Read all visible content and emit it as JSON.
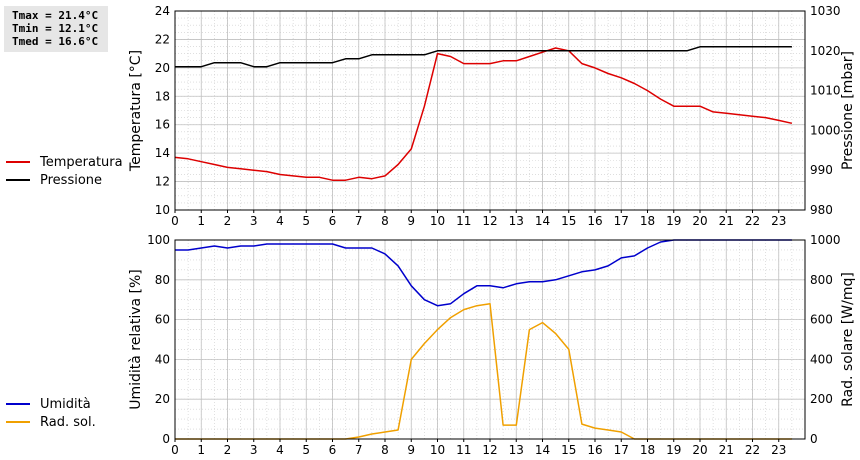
{
  "stats": {
    "tmax": "Tmax = 21.4°C",
    "tmin": "Tmin = 12.1°C",
    "tmed": "Tmed = 16.6°C"
  },
  "chart_data": [
    {
      "type": "line",
      "grid": true,
      "title": "",
      "xlabel": "",
      "x_ticks": [
        0,
        1,
        2,
        3,
        4,
        5,
        6,
        7,
        8,
        9,
        10,
        11,
        12,
        13,
        14,
        15,
        16,
        17,
        18,
        19,
        20,
        21,
        22,
        23
      ],
      "xlim": [
        0,
        24
      ],
      "ylabel": "Temperatura [°C]",
      "ylim": [
        10,
        24
      ],
      "y_ticks": [
        10,
        12,
        14,
        16,
        18,
        20,
        22,
        24
      ],
      "y2label": "Pressione [mbar]",
      "y2lim": [
        980,
        1030
      ],
      "y2_ticks": [
        980,
        990,
        1000,
        1010,
        1020,
        1030
      ],
      "legend": [
        {
          "name": "Temperatura",
          "color": "#dd0000"
        },
        {
          "name": "Pressione",
          "color": "#000000"
        }
      ],
      "series": [
        {
          "name": "Temperatura",
          "axis": "left",
          "color": "#dd0000",
          "x": [
            0,
            0.5,
            1,
            1.5,
            2,
            2.5,
            3,
            3.5,
            4,
            4.5,
            5,
            5.5,
            6,
            6.5,
            7,
            7.5,
            8,
            8.5,
            9,
            9.5,
            10,
            10.5,
            11,
            11.5,
            12,
            12.5,
            13,
            13.5,
            14,
            14.5,
            15,
            15.5,
            16,
            16.5,
            17,
            17.5,
            18,
            18.5,
            19,
            19.5,
            20,
            20.5,
            21,
            21.5,
            22,
            22.5,
            23,
            23.5
          ],
          "y": [
            13.7,
            13.6,
            13.4,
            13.2,
            13.0,
            12.9,
            12.8,
            12.7,
            12.5,
            12.4,
            12.3,
            12.3,
            12.1,
            12.1,
            12.3,
            12.2,
            12.4,
            13.2,
            14.3,
            17.3,
            21.0,
            20.8,
            20.3,
            20.3,
            20.3,
            20.5,
            20.5,
            20.8,
            21.1,
            21.4,
            21.2,
            20.3,
            20.0,
            19.6,
            19.3,
            18.9,
            18.4,
            17.8,
            17.3,
            17.3,
            17.3,
            16.9,
            16.8,
            16.7,
            16.6,
            16.5,
            16.3,
            16.1
          ]
        },
        {
          "name": "Pressione",
          "axis": "right",
          "color": "#000000",
          "x": [
            0,
            1,
            1.5,
            2.5,
            3,
            3.5,
            4,
            6,
            6.5,
            7,
            7.5,
            9.5,
            10,
            19.5,
            20,
            23.5
          ],
          "y": [
            1016,
            1016,
            1017,
            1017,
            1016,
            1016,
            1017,
            1017,
            1018,
            1018,
            1019,
            1019,
            1020,
            1020,
            1021,
            1021
          ]
        }
      ]
    },
    {
      "type": "line",
      "grid": true,
      "title": "",
      "xlabel": "",
      "x_ticks": [
        0,
        1,
        2,
        3,
        4,
        5,
        6,
        7,
        8,
        9,
        10,
        11,
        12,
        13,
        14,
        15,
        16,
        17,
        18,
        19,
        20,
        21,
        22,
        23
      ],
      "xlim": [
        0,
        24
      ],
      "ylabel": "Umidità relativa [%]",
      "ylim": [
        0,
        100
      ],
      "y_ticks": [
        0,
        20,
        40,
        60,
        80,
        100
      ],
      "y2label": "Rad. solare [W/mq]",
      "y2lim": [
        0,
        1000
      ],
      "y2_ticks": [
        0,
        200,
        400,
        600,
        800,
        1000
      ],
      "legend": [
        {
          "name": "Umidità",
          "color": "#0000cc"
        },
        {
          "name": "Rad. sol.",
          "color": "#f0a000"
        }
      ],
      "series": [
        {
          "name": "Umidità",
          "axis": "left",
          "color": "#0000cc",
          "x": [
            0,
            0.5,
            1,
            1.5,
            2,
            2.5,
            3,
            3.5,
            4,
            4.5,
            5,
            5.5,
            6,
            6.5,
            7,
            7.5,
            8,
            8.5,
            9,
            9.5,
            10,
            10.5,
            11,
            11.5,
            12,
            12.5,
            13,
            13.5,
            14,
            14.5,
            15,
            15.5,
            16,
            16.5,
            17,
            17.5,
            18,
            18.5,
            19,
            23.5
          ],
          "y": [
            95,
            95,
            96,
            97,
            96,
            97,
            97,
            98,
            98,
            98,
            98,
            98,
            98,
            96,
            96,
            96,
            93,
            87,
            77,
            70,
            67,
            68,
            73,
            77,
            77,
            76,
            78,
            79,
            79,
            80,
            82,
            84,
            85,
            87,
            91,
            92,
            96,
            99,
            100,
            100
          ]
        },
        {
          "name": "Rad. sol.",
          "axis": "right",
          "color": "#f0a000",
          "x": [
            0,
            6.5,
            7,
            7.5,
            8,
            8.5,
            9,
            9.5,
            10,
            10.5,
            11,
            11.5,
            12,
            12.5,
            13,
            13.5,
            14,
            14.5,
            15,
            15.5,
            16,
            16.5,
            17,
            17.5,
            23.5
          ],
          "y": [
            0,
            0,
            10,
            25,
            35,
            45,
            400,
            480,
            550,
            610,
            650,
            670,
            680,
            70,
            70,
            550,
            585,
            530,
            450,
            75,
            55,
            45,
            35,
            0,
            0
          ]
        }
      ]
    }
  ]
}
